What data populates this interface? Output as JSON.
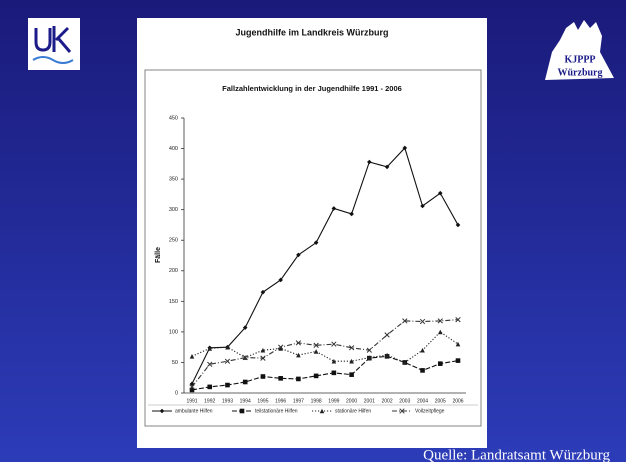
{
  "slide": {
    "title": "Jugendhilfe im Landkreis Würzburg",
    "logo_line1": "KJPPP",
    "logo_line2": "Würzburg",
    "source": "Quelle: Landratsamt Würzburg"
  },
  "chart_data": {
    "type": "line",
    "title": "Fallzahlentwicklung in der Jugendhilfe 1991 - 2006",
    "y_label": "Fälle",
    "categories": [
      "1991",
      "1992",
      "1993",
      "1994",
      "1995",
      "1996",
      "1997",
      "1998",
      "1999",
      "2000",
      "2001",
      "2002",
      "2003",
      "2004",
      "2005",
      "2006"
    ],
    "series": [
      {
        "name": "ambulante Hilfen",
        "color": "#111111",
        "style": "solid",
        "marker": "diamond",
        "values": [
          15,
          74,
          75,
          107,
          165,
          185,
          226,
          246,
          302,
          293,
          378,
          370,
          401,
          306,
          327,
          275
        ]
      },
      {
        "name": "teilstationäre Hilfen",
        "color": "#111111",
        "style": "dashed",
        "marker": "square",
        "values": [
          5,
          10,
          13,
          18,
          27,
          24,
          23,
          28,
          33,
          30,
          57,
          60,
          50,
          37,
          48,
          53
        ]
      },
      {
        "name": "stationäre Hilfen",
        "color": "#222222",
        "style": "dotted",
        "marker": "triangle",
        "values": [
          60,
          73,
          75,
          58,
          70,
          73,
          62,
          68,
          52,
          52,
          58,
          62,
          50,
          70,
          100,
          80
        ]
      },
      {
        "name": "Vollzeitpflege",
        "color": "#333333",
        "style": "dashdot",
        "marker": "x",
        "values": [
          10,
          47,
          52,
          58,
          57,
          75,
          82,
          78,
          80,
          74,
          70,
          95,
          118,
          117,
          118,
          120
        ]
      }
    ],
    "ylim": [
      0,
      450
    ],
    "yticks": [
      0,
      50,
      100,
      150,
      200,
      250,
      300,
      350,
      400,
      450
    ],
    "grid": false,
    "legend": "bottom"
  }
}
